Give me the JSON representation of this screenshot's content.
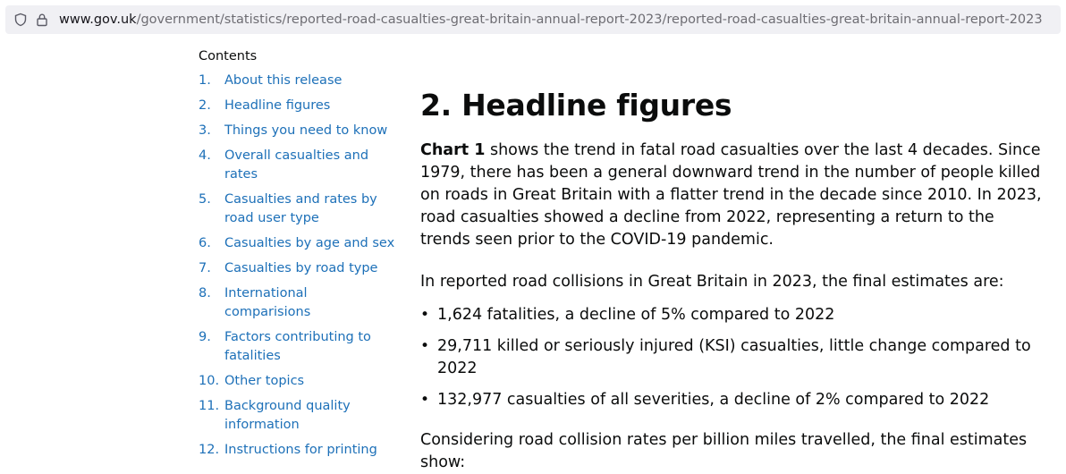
{
  "browser": {
    "url_host": "www.gov.uk",
    "url_path": "/government/statistics/reported-road-casualties-great-britain-annual-report-2023/reported-road-casualties-great-britain-annual-report-2023"
  },
  "contents": {
    "title": "Contents",
    "items": [
      {
        "num": "1.",
        "label": "About this release"
      },
      {
        "num": "2.",
        "label": "Headline figures"
      },
      {
        "num": "3.",
        "label": "Things you need to know"
      },
      {
        "num": "4.",
        "label": "Overall casualties and rates"
      },
      {
        "num": "5.",
        "label": "Casualties and rates by road user type"
      },
      {
        "num": "6.",
        "label": "Casualties by age and sex"
      },
      {
        "num": "7.",
        "label": "Casualties by road type"
      },
      {
        "num": "8.",
        "label": "International comparisions"
      },
      {
        "num": "9.",
        "label": "Factors contributing to fatalities"
      },
      {
        "num": "10.",
        "label": "Other topics"
      },
      {
        "num": "11.",
        "label": "Background quality information"
      },
      {
        "num": "12.",
        "label": "Instructions for printing"
      }
    ]
  },
  "article": {
    "heading": "2. Headline figures",
    "intro_bold": "Chart 1",
    "intro_text": " shows the trend in fatal road casualties over the last 4 decades. Since 1979, there has been a general downward trend in the number of people killed on roads in Great Britain with a flatter trend in the decade since 2010. In 2023, road casualties showed a decline from 2022, representing a return to the trends seen prior to the COVID-19 pandemic.",
    "estimates_intro": "In reported road collisions in Great Britain in 2023, the final estimates are:",
    "bullets": [
      "1,624 fatalities, a decline of 5% compared to 2022",
      "29,711 killed or seriously injured (KSI) casualties, little change compared to 2022",
      "132,977 casualties of all severities, a decline of 2% compared to 2022"
    ],
    "rates_intro": "Considering road collision rates per billion miles travelled, the final estimates show:"
  }
}
